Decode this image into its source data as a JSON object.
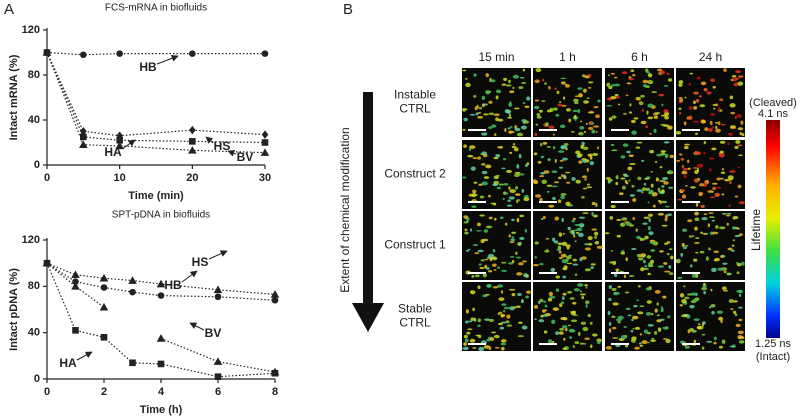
{
  "panel_labels": [
    "A",
    "B"
  ],
  "chart_data": [
    {
      "type": "line",
      "title": "FCS-mRNA in biofluids",
      "x_label": "Time (min)",
      "y_label": "Intact mRNA (%)",
      "x": [
        0,
        5,
        10,
        20,
        30
      ],
      "xlim": [
        0,
        30
      ],
      "xticks": [
        0,
        10,
        20,
        30
      ],
      "ylim": [
        0,
        120
      ],
      "yticks": [
        0,
        40,
        80,
        120
      ],
      "grid": false,
      "series": [
        {
          "name": "HB",
          "color": "#222222",
          "marker": "circle",
          "values": [
            100,
            98,
            99,
            99,
            99
          ]
        },
        {
          "name": "HS",
          "color": "#222222",
          "marker": "diamond",
          "values": [
            100,
            30,
            26,
            31,
            27
          ]
        },
        {
          "name": "HA",
          "color": "#222222",
          "marker": "square",
          "values": [
            100,
            25,
            22,
            21,
            20
          ]
        },
        {
          "name": "BV",
          "color": "#222222",
          "marker": "triangle",
          "values": [
            100,
            18,
            17,
            13,
            11
          ]
        }
      ]
    },
    {
      "type": "line",
      "title": "SPT-pDNA in biofluids",
      "x_label": "Time (h)",
      "y_label": "Intact pDNA (%)",
      "x": [
        0,
        1,
        2,
        3,
        4,
        6,
        8
      ],
      "xlim": [
        0,
        8
      ],
      "xticks": [
        0,
        2,
        4,
        6,
        8
      ],
      "ylim": [
        0,
        120
      ],
      "yticks": [
        0,
        40,
        80,
        120
      ],
      "grid": false,
      "series": [
        {
          "name": "HS",
          "color": "#222222",
          "marker": "triangle",
          "values": [
            100,
            90,
            87,
            85,
            82,
            77,
            73
          ]
        },
        {
          "name": "HB",
          "color": "#222222",
          "marker": "circle",
          "values": [
            100,
            84,
            79,
            75,
            72,
            71,
            68
          ]
        },
        {
          "name": "BV",
          "color": "#222222",
          "marker": "triangle",
          "values": [
            100,
            80,
            62,
            null,
            35,
            15,
            6
          ]
        },
        {
          "name": "HA",
          "color": "#222222",
          "marker": "square",
          "values": [
            100,
            42,
            36,
            14,
            13,
            2,
            5
          ]
        }
      ]
    }
  ],
  "panel_b": {
    "columns": [
      "15 min",
      "1 h",
      "6 h",
      "24 h"
    ],
    "rows": [
      [
        "Instable",
        "CTRL"
      ],
      [
        "Construct 2"
      ],
      [
        "Construct 1"
      ],
      [
        "Stable",
        "CTRL"
      ]
    ],
    "arrow_label": "Extent of chemical modification",
    "colorbar": {
      "top_note": "(Cleaved)",
      "top": "4.1 ns",
      "title": "Lifetime",
      "bottom": "1.25 ns",
      "bottom_note": "(Intact)"
    }
  }
}
